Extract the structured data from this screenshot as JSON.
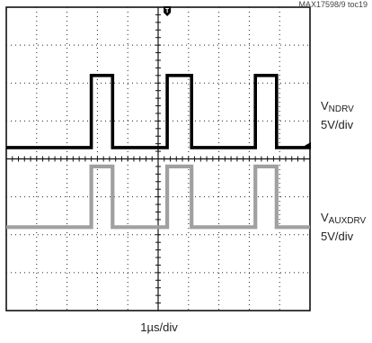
{
  "figure_ref": "MAX17598/9 toc19",
  "time_scale": "1µs/div",
  "chart_data": {
    "type": "line",
    "grid": {
      "x_divisions": 10,
      "y_divisions": 8,
      "minor_ticks_per_division": 5,
      "visible": true
    },
    "x_range_div": [
      0,
      10
    ],
    "y_range_div": [
      0,
      8
    ],
    "series": [
      {
        "name": "NDRV",
        "label_prefix": "V",
        "label_sub": "NDRV",
        "scale": "5V/div",
        "color": "#000000",
        "points": [
          [
            0,
            4.3
          ],
          [
            2.8,
            4.3
          ],
          [
            2.8,
            6.2
          ],
          [
            3.5,
            6.2
          ],
          [
            3.5,
            4.3
          ],
          [
            5.3,
            4.3
          ],
          [
            5.3,
            6.2
          ],
          [
            6.1,
            6.2
          ],
          [
            6.1,
            4.3
          ],
          [
            8.2,
            4.3
          ],
          [
            8.2,
            6.2
          ],
          [
            8.9,
            6.2
          ],
          [
            8.9,
            4.3
          ],
          [
            10,
            4.3
          ]
        ]
      },
      {
        "name": "AUXDRV",
        "label_prefix": "V",
        "label_sub": "AUXDRV",
        "scale": "5V/div",
        "color": "#a0a0a0",
        "points": [
          [
            0,
            2.2
          ],
          [
            2.8,
            2.2
          ],
          [
            2.8,
            3.8
          ],
          [
            3.5,
            3.8
          ],
          [
            3.5,
            2.2
          ],
          [
            5.3,
            2.2
          ],
          [
            5.3,
            3.8
          ],
          [
            6.1,
            3.8
          ],
          [
            6.1,
            2.2
          ],
          [
            8.2,
            2.2
          ],
          [
            8.2,
            3.8
          ],
          [
            8.9,
            3.8
          ],
          [
            8.9,
            2.2
          ],
          [
            10,
            2.2
          ]
        ]
      }
    ],
    "markers": {
      "trigger": {
        "symbol": "T",
        "x_div": 5.3
      },
      "level_arrow": {
        "y_div": 4.3
      }
    }
  }
}
